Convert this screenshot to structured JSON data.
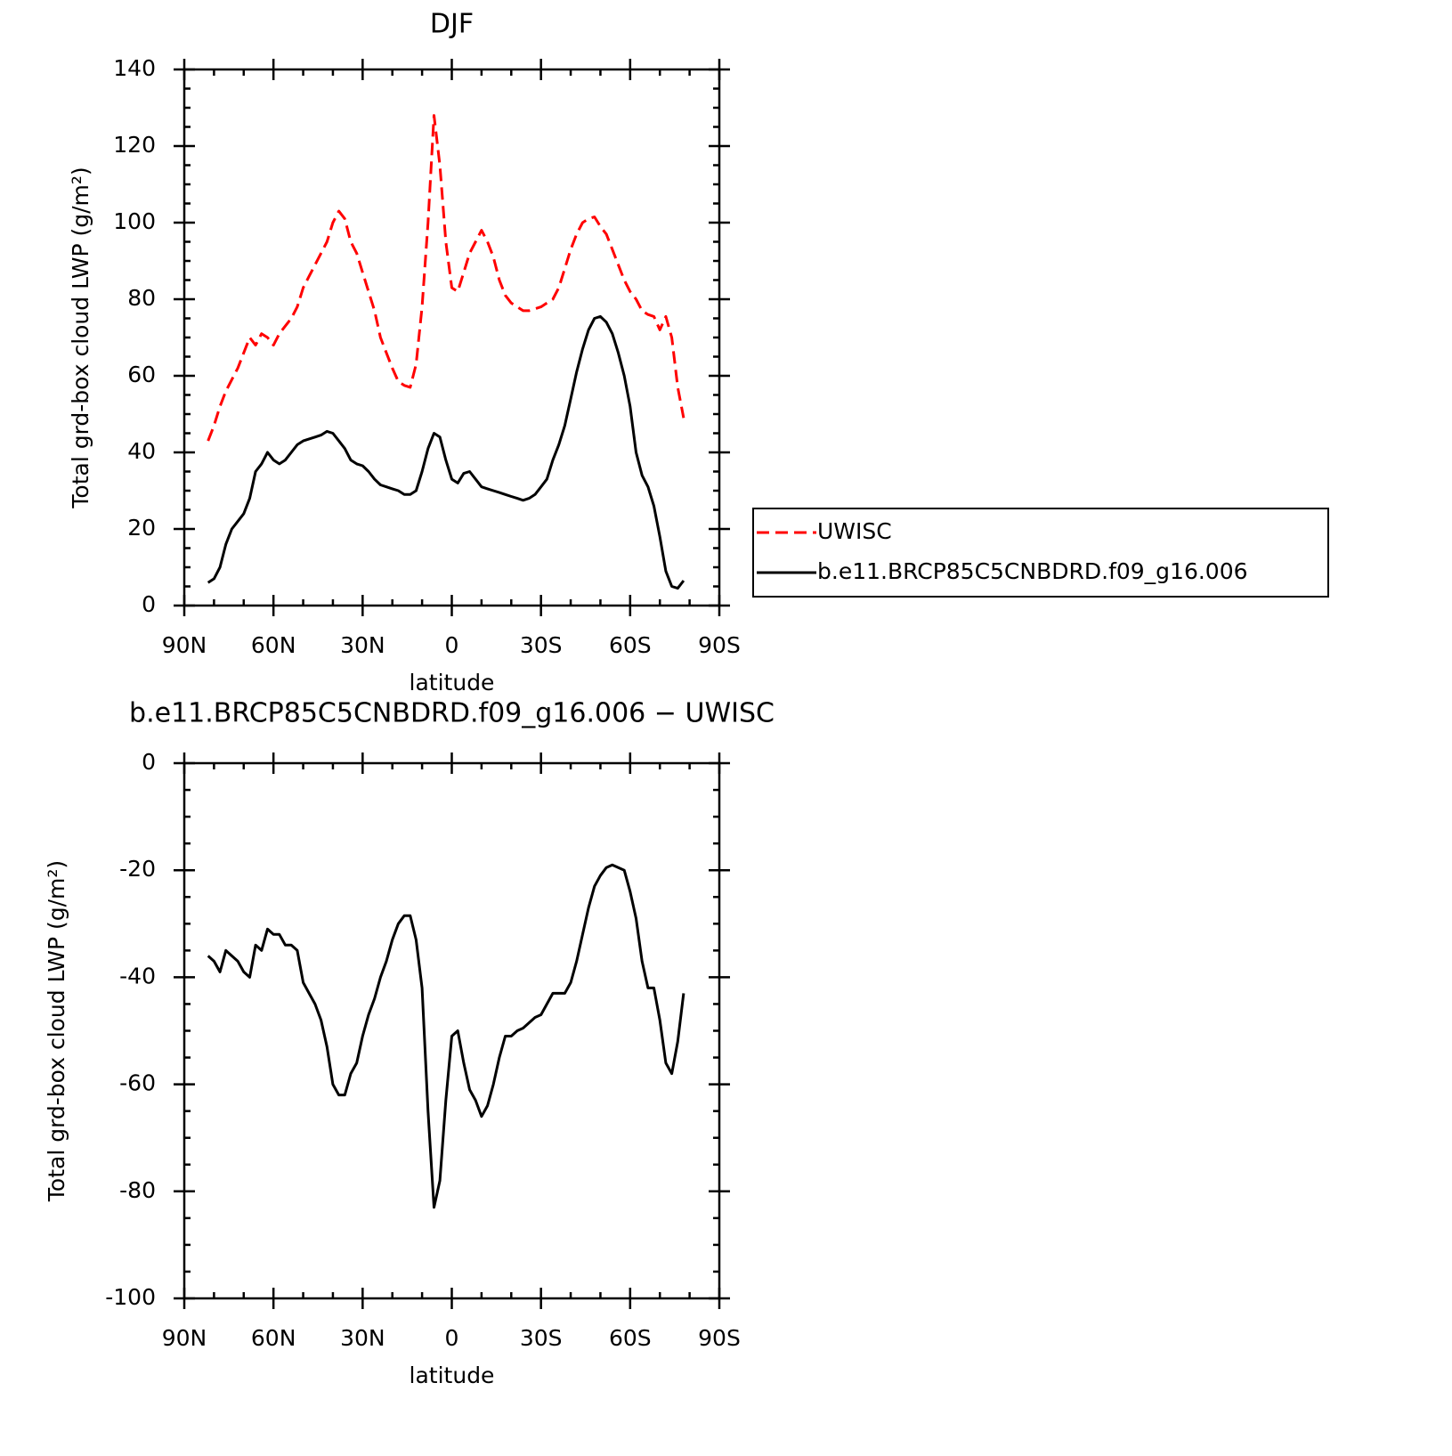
{
  "chart_data": [
    {
      "type": "line",
      "title": "DJF",
      "xlabel": "latitude",
      "ylabel": "Total grd-box cloud LWP (g/m²)",
      "x": [
        82,
        80,
        78,
        76,
        74,
        72,
        70,
        68,
        66,
        64,
        62,
        60,
        58,
        56,
        54,
        52,
        50,
        48,
        46,
        44,
        42,
        40,
        38,
        36,
        34,
        32,
        30,
        28,
        26,
        24,
        22,
        20,
        18,
        16,
        14,
        12,
        10,
        8,
        6,
        4,
        2,
        0,
        -2,
        -4,
        -6,
        -8,
        -10,
        -12,
        -14,
        -16,
        -18,
        -20,
        -22,
        -24,
        -26,
        -28,
        -30,
        -32,
        -34,
        -36,
        -38,
        -40,
        -42,
        -44,
        -46,
        -48,
        -50,
        -52,
        -54,
        -56,
        -58,
        -60,
        -62,
        -64,
        -66,
        -68,
        -70,
        -72,
        -74,
        -76,
        -78
      ],
      "series": [
        {
          "name": "UWISC",
          "color": "#ff0000",
          "dashed": true,
          "values": [
            43,
            47,
            52,
            56,
            59,
            62,
            66,
            70,
            68,
            71,
            70,
            68,
            71,
            73,
            75,
            78,
            83,
            86,
            89,
            92,
            95,
            100,
            103,
            101,
            95,
            92,
            87,
            82,
            77,
            70,
            66,
            62,
            58.5,
            57.5,
            57,
            63,
            78,
            100,
            128,
            115,
            95,
            83,
            82,
            87,
            92,
            95,
            98,
            95,
            91,
            85,
            81,
            79,
            78,
            77,
            77,
            77.5,
            78,
            79,
            80,
            83,
            88,
            93,
            97,
            100,
            101,
            101.5,
            99,
            97,
            93,
            89,
            85,
            82,
            80,
            77,
            76,
            75.5,
            72,
            75.5,
            70,
            57,
            49
          ]
        },
        {
          "name": "b.e11.BRCP85C5CNBDRD.f09_g16.006",
          "color": "#000000",
          "dashed": false,
          "values": [
            6,
            7,
            10,
            16,
            20,
            22,
            24,
            28,
            35,
            37,
            40,
            38,
            37,
            38,
            40,
            42,
            43,
            43.5,
            44,
            44.5,
            45.5,
            45,
            43,
            41,
            38,
            37,
            36.5,
            35,
            33,
            31.5,
            31,
            30.5,
            30,
            29,
            29,
            30,
            35,
            41,
            45,
            44,
            38,
            33,
            32,
            34.5,
            35,
            33,
            31,
            30.5,
            30,
            29.5,
            29,
            28.5,
            28,
            27.5,
            28,
            29,
            31,
            33,
            38,
            42,
            47,
            54,
            61,
            67,
            72,
            75,
            75.5,
            74,
            71,
            66,
            60,
            52,
            40,
            34,
            31,
            26,
            18,
            9,
            5,
            4.5,
            6.5
          ]
        }
      ],
      "xlim": [
        90,
        -90
      ],
      "xticks": [
        {
          "value": 90,
          "label": "90N"
        },
        {
          "value": 60,
          "label": "60N"
        },
        {
          "value": 30,
          "label": "30N"
        },
        0,
        {
          "value": -30,
          "label": "30S"
        },
        {
          "value": -60,
          "label": "60S"
        },
        {
          "value": -90,
          "label": "90S"
        }
      ],
      "ylim": [
        0,
        140
      ],
      "yticks": [
        0,
        20,
        40,
        60,
        80,
        100,
        120,
        140
      ],
      "legend": "right"
    },
    {
      "type": "line",
      "title": "b.e11.BRCP85C5CNBDRD.f09_g16.006 − UWISC",
      "xlabel": "latitude",
      "ylabel": "Total grd-box cloud LWP (g/m²)",
      "x": [
        82,
        80,
        78,
        76,
        74,
        72,
        70,
        68,
        66,
        64,
        62,
        60,
        58,
        56,
        54,
        52,
        50,
        48,
        46,
        44,
        42,
        40,
        38,
        36,
        34,
        32,
        30,
        28,
        26,
        24,
        22,
        20,
        18,
        16,
        14,
        12,
        10,
        8,
        6,
        4,
        2,
        0,
        -2,
        -4,
        -6,
        -8,
        -10,
        -12,
        -14,
        -16,
        -18,
        -20,
        -22,
        -24,
        -26,
        -28,
        -30,
        -32,
        -34,
        -36,
        -38,
        -40,
        -42,
        -44,
        -46,
        -48,
        -50,
        -52,
        -54,
        -56,
        -58,
        -60,
        -62,
        -64,
        -66,
        -68,
        -70,
        -72,
        -74,
        -76,
        -78
      ],
      "series": [
        {
          "color": "#000000",
          "dashed": false,
          "values": [
            -36,
            -37,
            -39,
            -35,
            -36,
            -37,
            -39,
            -40,
            -34,
            -35,
            -31,
            -32,
            -32,
            -34,
            -34,
            -35,
            -41,
            -43,
            -45,
            -48,
            -53,
            -60,
            -62,
            -62,
            -58,
            -56,
            -51,
            -47,
            -44,
            -40,
            -37,
            -33,
            -30,
            -28.5,
            -28.5,
            -33,
            -42,
            -65,
            -83,
            -78,
            -63,
            -51,
            -50,
            -56,
            -61,
            -63,
            -66,
            -64,
            -60,
            -55,
            -51,
            -51,
            -50,
            -49.5,
            -48.5,
            -47.5,
            -47,
            -45,
            -43,
            -43,
            -43,
            -41,
            -37,
            -32,
            -27,
            -23,
            -21,
            -19.5,
            -19,
            -19.5,
            -20,
            -24,
            -29,
            -37,
            -42,
            -42,
            -48,
            -56,
            -58,
            -52,
            -43
          ]
        }
      ],
      "xlim": [
        90,
        -90
      ],
      "xticks": [
        {
          "value": 90,
          "label": "90N"
        },
        {
          "value": 60,
          "label": "60N"
        },
        {
          "value": 30,
          "label": "30N"
        },
        0,
        {
          "value": -30,
          "label": "30S"
        },
        {
          "value": -60,
          "label": "60S"
        },
        {
          "value": -90,
          "label": "90S"
        }
      ],
      "ylim": [
        -100,
        0
      ],
      "yticks": [
        -100,
        -80,
        -60,
        -40,
        -20,
        0
      ]
    }
  ]
}
